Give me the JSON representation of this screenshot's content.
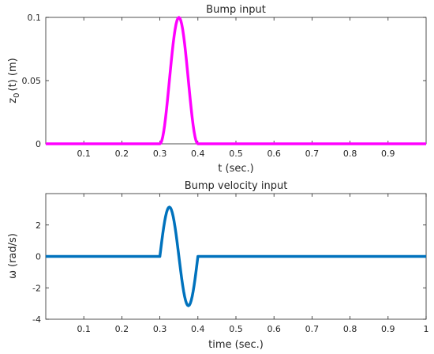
{
  "chart_data": [
    {
      "type": "line",
      "title": "Bump input",
      "xlabel": "t (sec.)",
      "ylabel_base": "z",
      "ylabel_sub": "0",
      "ylabel_rest": "(t) (m)",
      "xlim": [
        0,
        1
      ],
      "ylim": [
        0,
        0.1
      ],
      "xticks": [
        0.1,
        0.2,
        0.3,
        0.4,
        0.5,
        0.6,
        0.7,
        0.8,
        0.9
      ],
      "xtick_labels": [
        "0.1",
        "0.2",
        "0.3",
        "0.4",
        "0.5",
        "0.6",
        "0.7",
        "0.8",
        "0.9"
      ],
      "yticks": [
        0,
        0.05,
        0.1
      ],
      "ytick_labels": [
        "0",
        "0.05",
        "0.1"
      ],
      "grid": false,
      "color": "#ff00ff",
      "function": "bump",
      "bump_start": 0.3,
      "bump_end": 0.4,
      "bump_height": 0.1
    },
    {
      "type": "line",
      "title": "Bump velocity input",
      "xlabel": "time (sec.)",
      "ylabel_base": "ω",
      "ylabel_sub": "",
      "ylabel_rest": "(rad/s)",
      "xlim": [
        0,
        1
      ],
      "ylim": [
        -4,
        4
      ],
      "xticks": [
        0.1,
        0.2,
        0.3,
        0.4,
        0.5,
        0.6,
        0.7,
        0.8,
        0.9,
        1
      ],
      "xtick_labels": [
        "0.1",
        "0.2",
        "0.3",
        "0.4",
        "0.5",
        "0.6",
        "0.7",
        "0.8",
        "0.9",
        "1"
      ],
      "yticks": [
        -4,
        -2,
        0,
        2
      ],
      "ytick_labels": [
        "-4",
        "-2",
        "0",
        "2"
      ],
      "grid": false,
      "color": "#0072bd",
      "function": "bump_velocity",
      "bump_start": 0.3,
      "bump_end": 0.4,
      "bump_height": 0.1
    }
  ]
}
